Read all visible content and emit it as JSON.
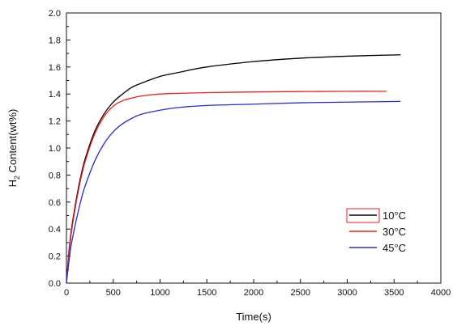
{
  "chart_data": {
    "type": "line",
    "title": "",
    "xlabel": "Time(s)",
    "ylabel_main": "H",
    "ylabel_sub": "2",
    "ylabel_rest": " Content(wt%)",
    "xlim": [
      0,
      4000
    ],
    "ylim": [
      0.0,
      2.0
    ],
    "x_ticks": [
      "0",
      "500",
      "1000",
      "1500",
      "2000",
      "2500",
      "3000",
      "3500",
      "4000"
    ],
    "y_ticks": [
      "0.0",
      "0.2",
      "0.4",
      "0.6",
      "0.8",
      "1.0",
      "1.2",
      "1.4",
      "1.6",
      "1.8",
      "2.0"
    ],
    "grid": false,
    "legend_position": "bottom-right",
    "series": [
      {
        "name": "10°C",
        "color": "#000000",
        "x": [
          0,
          25,
          50,
          100,
          150,
          200,
          300,
          400,
          500,
          600,
          700,
          800,
          1000,
          1200,
          1500,
          2000,
          2500,
          3000,
          3570
        ],
        "y": [
          0.0,
          0.22,
          0.38,
          0.6,
          0.78,
          0.92,
          1.12,
          1.25,
          1.34,
          1.4,
          1.45,
          1.48,
          1.53,
          1.56,
          1.6,
          1.64,
          1.665,
          1.68,
          1.69
        ]
      },
      {
        "name": "30°C",
        "color": "#e8231f",
        "x": [
          0,
          25,
          50,
          100,
          150,
          200,
          300,
          400,
          500,
          600,
          700,
          800,
          1000,
          1200,
          1500,
          2000,
          2500,
          3000,
          3420
        ],
        "y": [
          0.0,
          0.2,
          0.36,
          0.58,
          0.76,
          0.9,
          1.1,
          1.23,
          1.31,
          1.35,
          1.37,
          1.385,
          1.4,
          1.405,
          1.41,
          1.415,
          1.418,
          1.42,
          1.42
        ]
      },
      {
        "name": "45°C",
        "color": "#2a2ad8",
        "x": [
          0,
          25,
          50,
          100,
          150,
          200,
          300,
          400,
          500,
          600,
          700,
          800,
          1000,
          1200,
          1500,
          2000,
          2500,
          3000,
          3570
        ],
        "y": [
          0.0,
          0.15,
          0.28,
          0.45,
          0.6,
          0.72,
          0.9,
          1.03,
          1.12,
          1.18,
          1.22,
          1.25,
          1.28,
          1.3,
          1.315,
          1.325,
          1.335,
          1.34,
          1.345
        ]
      }
    ]
  }
}
